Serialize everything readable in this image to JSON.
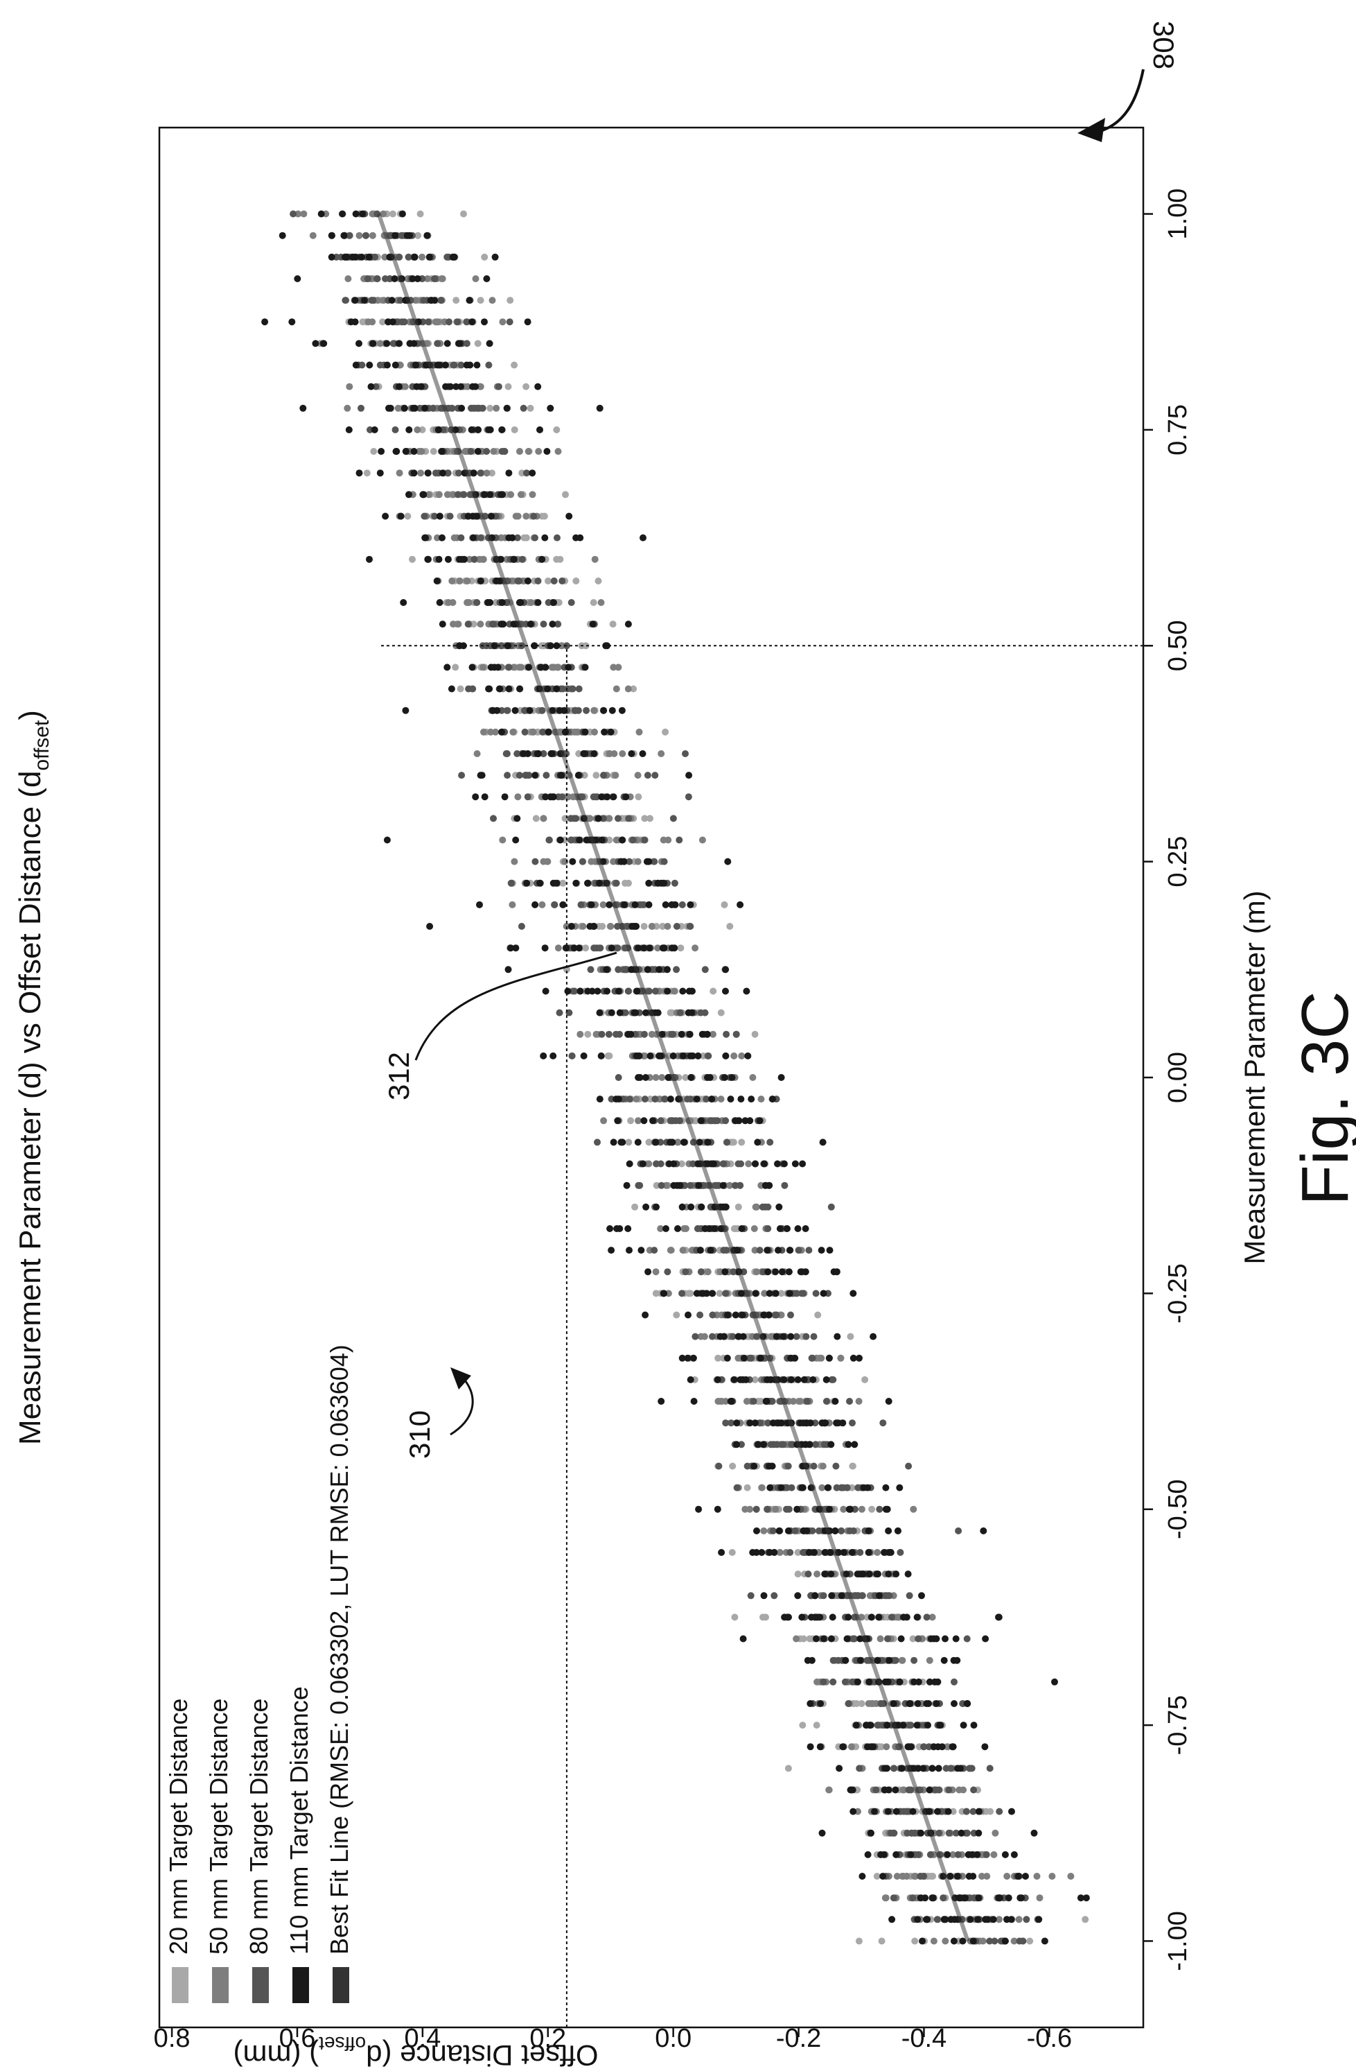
{
  "chart_data": {
    "type": "scatter",
    "title": "Measurement Parameter (d) vs Offset Distance (d",
    "title_sub": "offset",
    "title_end": ")",
    "xlabel": "Measurement Parameter (m)",
    "ylabel": "Offset Distance (d",
    "ylabel_sub": "offset",
    "ylabel_end": ") (mm)",
    "xlim": [
      -1.1,
      1.1
    ],
    "ylim": [
      -0.75,
      0.82
    ],
    "xticks": [
      "-1.00",
      "-0.75",
      "-0.50",
      "-0.25",
      "0.00",
      "0.25",
      "0.50",
      "0.75",
      "1.00"
    ],
    "xtick_values": [
      -1.0,
      -0.75,
      -0.5,
      -0.25,
      0.0,
      0.25,
      0.5,
      0.75,
      1.0
    ],
    "yticks": [
      "0.8",
      "0.6",
      "0.4",
      "0.2",
      "0.0",
      "-0.2",
      "-0.4",
      "-0.6"
    ],
    "ytick_values": [
      0.8,
      0.6,
      0.4,
      0.2,
      0.0,
      -0.2,
      -0.4,
      -0.6
    ],
    "grid": false,
    "legend_placement": "top-left",
    "series": [
      {
        "name": "20 mm Target Distance",
        "color": "#a8a8a8",
        "points": [
          [
            -1.0,
            -0.46
          ],
          [
            -0.75,
            -0.35
          ],
          [
            -0.5,
            -0.23
          ],
          [
            -0.25,
            -0.11
          ],
          [
            0.0,
            0.0
          ],
          [
            0.25,
            0.11
          ],
          [
            0.5,
            0.23
          ],
          [
            0.75,
            0.35
          ],
          [
            1.0,
            0.46
          ]
        ]
      },
      {
        "name": "50 mm Target Distance",
        "color": "#7e7e7e",
        "points": [
          [
            -1.0,
            -0.47
          ],
          [
            -0.75,
            -0.35
          ],
          [
            -0.5,
            -0.24
          ],
          [
            -0.25,
            -0.12
          ],
          [
            0.0,
            0.0
          ],
          [
            0.25,
            0.12
          ],
          [
            0.5,
            0.24
          ],
          [
            0.75,
            0.35
          ],
          [
            1.0,
            0.47
          ]
        ]
      },
      {
        "name": "80 mm Target Distance",
        "color": "#555555",
        "points": [
          [
            -1.0,
            -0.48
          ],
          [
            -0.75,
            -0.36
          ],
          [
            -0.5,
            -0.24
          ],
          [
            -0.25,
            -0.12
          ],
          [
            0.0,
            0.0
          ],
          [
            0.25,
            0.12
          ],
          [
            0.5,
            0.24
          ],
          [
            0.75,
            0.36
          ],
          [
            1.0,
            0.48
          ]
        ]
      },
      {
        "name": "110 mm Target Distance",
        "color": "#1a1a1a",
        "points": [
          [
            -1.0,
            -0.49
          ],
          [
            -0.75,
            -0.37
          ],
          [
            -0.5,
            -0.25
          ],
          [
            -0.25,
            -0.12
          ],
          [
            0.0,
            0.0
          ],
          [
            0.25,
            0.12
          ],
          [
            0.5,
            0.25
          ],
          [
            0.75,
            0.37
          ],
          [
            1.0,
            0.49
          ]
        ]
      }
    ],
    "best_fit": {
      "name": "Best Fit Line (RMSE: 0.063302, LUT RMSE: 0.063604)",
      "color": "#333333",
      "x": [
        -1.0,
        1.0
      ],
      "y": [
        -0.47,
        0.47
      ]
    },
    "reference_point": {
      "x": 0.5,
      "y": 0.17
    },
    "annotations": [
      "308",
      "310",
      "312"
    ],
    "figure_label": "Fig. 3C"
  }
}
